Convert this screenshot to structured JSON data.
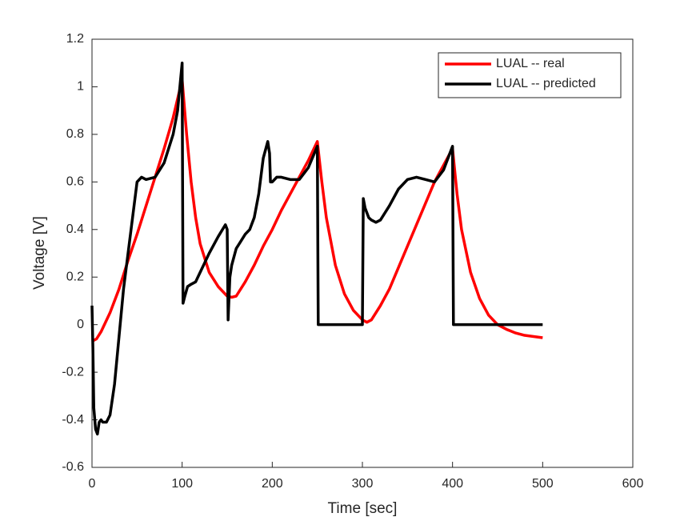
{
  "chart_data": {
    "type": "line",
    "x_label": "Time [sec]",
    "y_label": "Voltage [V]",
    "xlim": [
      0,
      600
    ],
    "xticks": [
      0,
      100,
      200,
      300,
      400,
      500,
      600
    ],
    "ylim": [
      -0.6,
      1.2
    ],
    "yticks": [
      -0.6,
      -0.4,
      -0.2,
      0,
      0.2,
      0.4,
      0.6,
      0.8,
      1,
      1.2
    ],
    "legend": "upper right",
    "series": [
      {
        "name": "LUAL -- real",
        "color": "#ff0000",
        "x": [
          0,
          5,
          10,
          20,
          30,
          40,
          50,
          60,
          70,
          80,
          90,
          100,
          105,
          110,
          115,
          120,
          130,
          140,
          150,
          155,
          160,
          170,
          180,
          190,
          200,
          210,
          220,
          230,
          240,
          250,
          255,
          260,
          270,
          280,
          290,
          300,
          305,
          310,
          320,
          330,
          340,
          350,
          360,
          370,
          380,
          390,
          400,
          405,
          410,
          420,
          430,
          440,
          450,
          460,
          470,
          480,
          490,
          500
        ],
        "values": [
          -0.07,
          -0.06,
          -0.03,
          0.05,
          0.15,
          0.27,
          0.38,
          0.5,
          0.62,
          0.74,
          0.87,
          1.03,
          0.8,
          0.6,
          0.45,
          0.34,
          0.22,
          0.16,
          0.12,
          0.115,
          0.12,
          0.18,
          0.25,
          0.33,
          0.4,
          0.48,
          0.55,
          0.62,
          0.69,
          0.77,
          0.6,
          0.45,
          0.25,
          0.13,
          0.06,
          0.02,
          0.01,
          0.02,
          0.08,
          0.15,
          0.24,
          0.33,
          0.42,
          0.51,
          0.6,
          0.67,
          0.74,
          0.55,
          0.4,
          0.22,
          0.11,
          0.04,
          0,
          -0.02,
          -0.035,
          -0.045,
          -0.05,
          -0.055
        ]
      },
      {
        "name": "LUAL -- predicted",
        "color": "#000000",
        "x": [
          0,
          1,
          2,
          4,
          6,
          8,
          10,
          12,
          16,
          20,
          25,
          30,
          35,
          40,
          45,
          50,
          55,
          60,
          70,
          80,
          90,
          95,
          100,
          101,
          103,
          106,
          110,
          115,
          120,
          130,
          140,
          148,
          150,
          151,
          153,
          155,
          160,
          165,
          170,
          175,
          180,
          185,
          190,
          195,
          197,
          198,
          200,
          205,
          210,
          220,
          230,
          240,
          250,
          251,
          300,
          301,
          303,
          307,
          310,
          315,
          320,
          330,
          340,
          350,
          360,
          370,
          380,
          390,
          400,
          401,
          500
        ],
        "values": [
          0.08,
          -0.1,
          -0.35,
          -0.44,
          -0.46,
          -0.41,
          -0.4,
          -0.41,
          -0.41,
          -0.38,
          -0.25,
          -0.05,
          0.15,
          0.3,
          0.45,
          0.6,
          0.62,
          0.61,
          0.62,
          0.68,
          0.8,
          0.9,
          1.1,
          0.09,
          0.12,
          0.16,
          0.17,
          0.18,
          0.22,
          0.3,
          0.37,
          0.42,
          0.4,
          0.02,
          0.2,
          0.25,
          0.32,
          0.35,
          0.38,
          0.4,
          0.45,
          0.55,
          0.7,
          0.77,
          0.72,
          0.6,
          0.6,
          0.62,
          0.62,
          0.61,
          0.61,
          0.66,
          0.75,
          0,
          0,
          0.53,
          0.49,
          0.45,
          0.44,
          0.43,
          0.44,
          0.5,
          0.57,
          0.61,
          0.62,
          0.61,
          0.6,
          0.65,
          0.75,
          0,
          0
        ]
      }
    ]
  }
}
